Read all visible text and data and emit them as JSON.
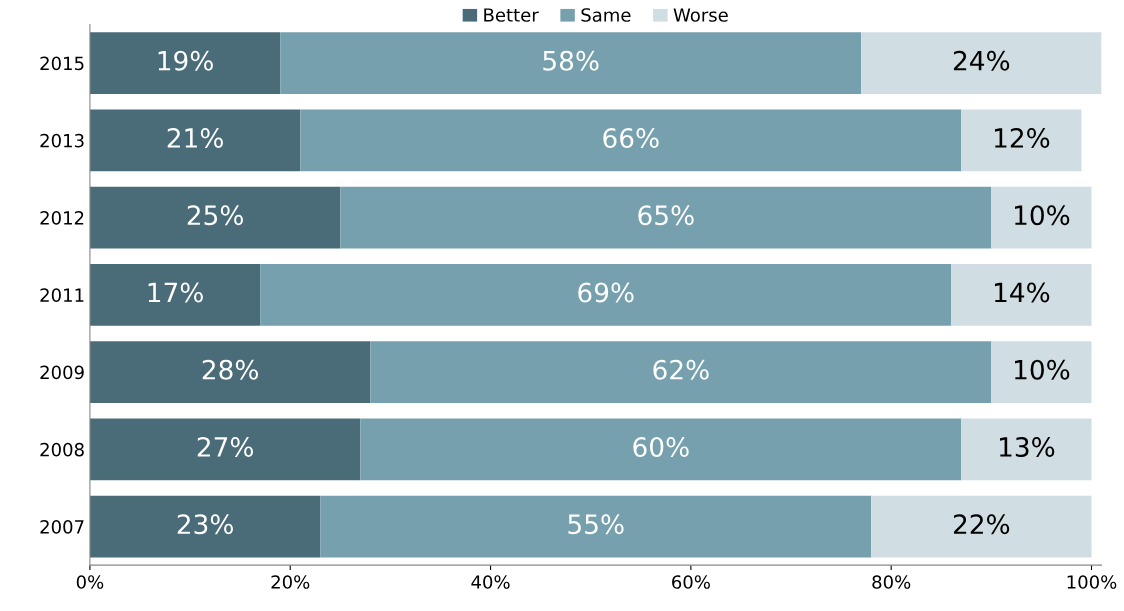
{
  "chart_data": {
    "type": "bar",
    "orientation": "horizontal",
    "stacked": true,
    "categories": [
      "2015",
      "2013",
      "2012",
      "2011",
      "2009",
      "2008",
      "2007"
    ],
    "series": [
      {
        "name": "Better",
        "color": "#4a6b78",
        "values": [
          19,
          21,
          25,
          17,
          28,
          27,
          23
        ],
        "value_labels": [
          "19%",
          "21%",
          "25%",
          "17%",
          "28%",
          "27%",
          "23%"
        ]
      },
      {
        "name": "Same",
        "color": "#76a0ad",
        "values": [
          58,
          66,
          65,
          69,
          62,
          60,
          55
        ],
        "value_labels": [
          "58%",
          "66%",
          "65%",
          "69%",
          "62%",
          "60%",
          "55%"
        ]
      },
      {
        "name": "Worse",
        "color": "#d0dde2",
        "values": [
          24,
          12,
          10,
          14,
          10,
          13,
          22
        ],
        "value_labels": [
          "24%",
          "12%",
          "10%",
          "14%",
          "10%",
          "13%",
          "22%"
        ]
      }
    ],
    "xlim": [
      0,
      101
    ],
    "xticks": [
      {
        "value": 0,
        "label": "0%"
      },
      {
        "value": 20,
        "label": "20%"
      },
      {
        "value": 40,
        "label": "40%"
      },
      {
        "value": 60,
        "label": "60%"
      },
      {
        "value": 80,
        "label": "80%"
      },
      {
        "value": 100,
        "label": "100%"
      }
    ],
    "grid": false,
    "legend": "top"
  }
}
